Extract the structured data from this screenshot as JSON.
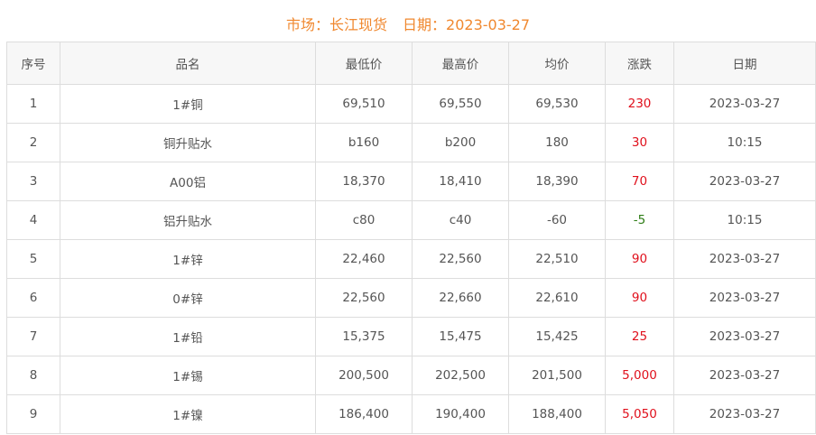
{
  "header": {
    "market": "市场：长江现货",
    "date": "日期：2023-03-27"
  },
  "colors": {
    "title": "#f0882f",
    "up": "#e0101c",
    "down": "#2e7d16"
  },
  "columns": [
    "序号",
    "品名",
    "最低价",
    "最高价",
    "均价",
    "涨跌",
    "日期"
  ],
  "rows": [
    [
      "1",
      "1#铜",
      "69,510",
      "69,550",
      "69,530",
      "230",
      "2023-03-27"
    ],
    [
      "2",
      "铜升贴水",
      "b160",
      "b200",
      "180",
      "30",
      "10:15"
    ],
    [
      "3",
      "A00铝",
      "18,370",
      "18,410",
      "18,390",
      "70",
      "2023-03-27"
    ],
    [
      "4",
      "铝升贴水",
      "c80",
      "c40",
      "-60",
      "-5",
      "10:15"
    ],
    [
      "5",
      "1#锌",
      "22,460",
      "22,560",
      "22,510",
      "90",
      "2023-03-27"
    ],
    [
      "6",
      "0#锌",
      "22,560",
      "22,660",
      "22,610",
      "90",
      "2023-03-27"
    ],
    [
      "7",
      "1#铅",
      "15,375",
      "15,475",
      "15,425",
      "25",
      "2023-03-27"
    ],
    [
      "8",
      "1#锡",
      "200,500",
      "202,500",
      "201,500",
      "5,000",
      "2023-03-27"
    ],
    [
      "9",
      "1#镍",
      "186,400",
      "190,400",
      "188,400",
      "5,050",
      "2023-03-27"
    ]
  ]
}
